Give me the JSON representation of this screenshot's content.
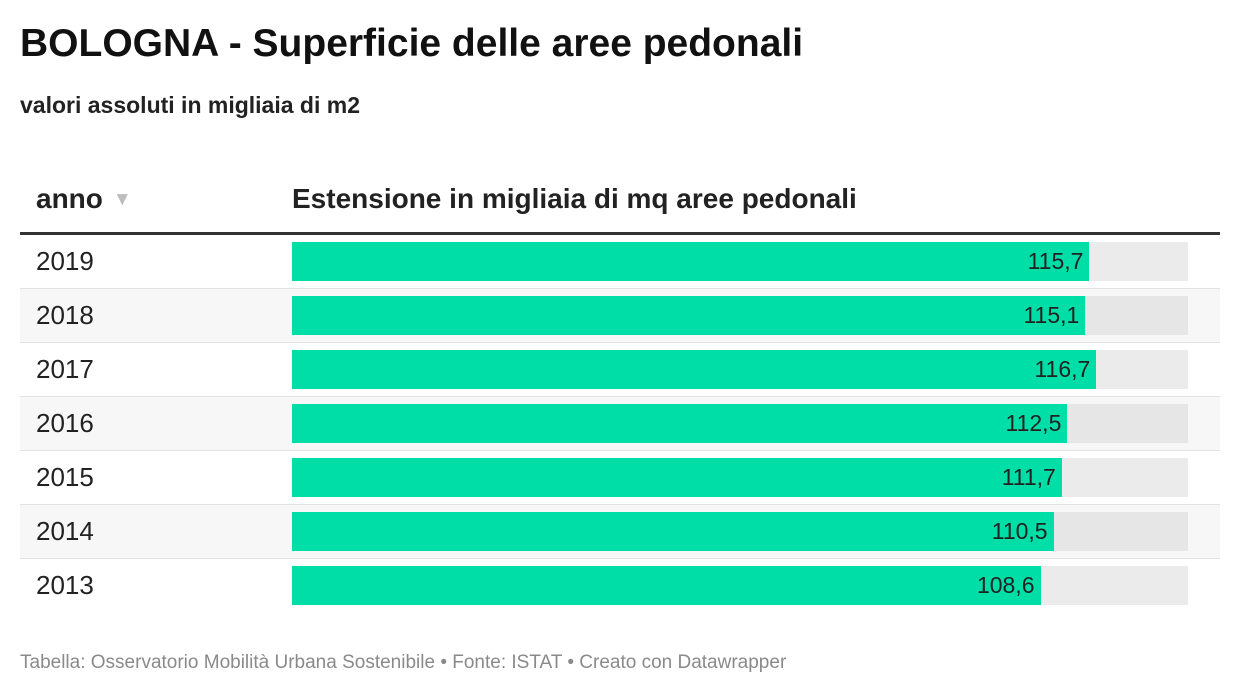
{
  "title": "BOLOGNA - Superficie delle aree pedonali",
  "subtitle": "valori assoluti in migliaia di m2",
  "columns": {
    "year": "anno",
    "value": "Estensione in migliaia di mq aree pedonali",
    "sort_icon": "sort-descending-triangle"
  },
  "footer": "Tabella: Osservatorio Mobilità Urbana Sostenibile • Fonte: ISTAT • Creato con Datawrapper",
  "colors": {
    "bar": "#00dea8",
    "track": "#ebebeb"
  },
  "chart_data": {
    "type": "table",
    "categories": [
      "2019",
      "2018",
      "2017",
      "2016",
      "2015",
      "2014",
      "2013"
    ],
    "values": [
      115.7,
      115.1,
      116.7,
      112.5,
      111.7,
      110.5,
      108.6
    ],
    "value_labels": [
      "115,7",
      "115,1",
      "116,7",
      "112,5",
      "111,7",
      "110,5",
      "108,6"
    ],
    "xlim": [
      0,
      130
    ]
  }
}
